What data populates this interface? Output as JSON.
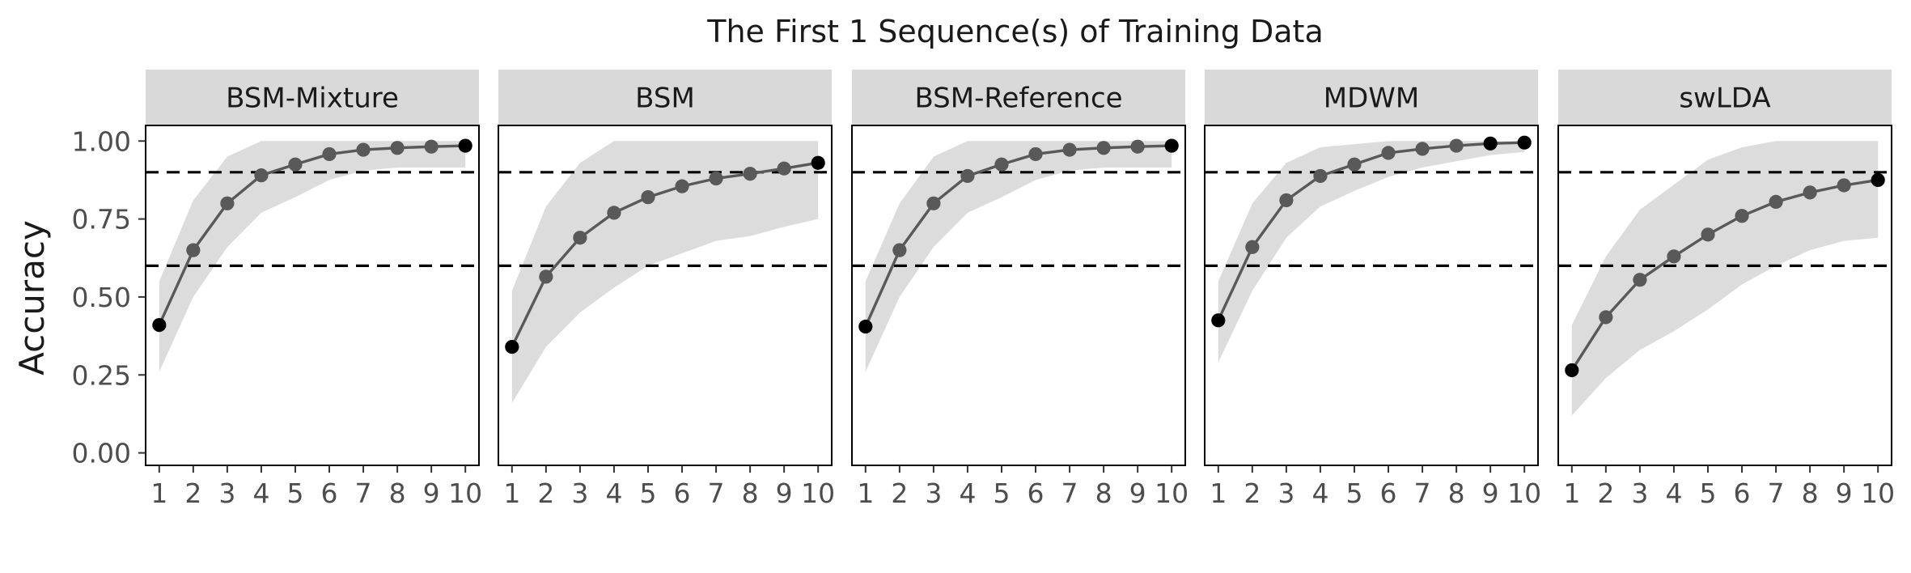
{
  "chart_data": {
    "type": "line",
    "title": "The First 1 Sequence(s) of Training Data",
    "ylabel": "Accuracy",
    "xlabel": "",
    "x": [
      1,
      2,
      3,
      4,
      5,
      6,
      7,
      8,
      9,
      10
    ],
    "x_tick_labels": [
      "1",
      "2",
      "3",
      "4",
      "5",
      "6",
      "7",
      "8",
      "9",
      "10"
    ],
    "y_ticks": [
      0.0,
      0.25,
      0.5,
      0.75,
      1.0
    ],
    "y_tick_labels": [
      "0.00",
      "0.25",
      "0.50",
      "0.75",
      "1.00"
    ],
    "ylim": [
      -0.04,
      1.05
    ],
    "xlim": [
      0.6,
      10.4
    ],
    "reference_lines": [
      0.9,
      0.6
    ],
    "colors": {
      "line": "#595959",
      "point": "#595959",
      "point_dark": "#000000",
      "band": "#dcdcdc",
      "strip": "#d9d9d9",
      "refline": "#000000"
    },
    "panels": [
      {
        "name": "BSM-Mixture",
        "values": [
          0.41,
          0.65,
          0.8,
          0.89,
          0.925,
          0.958,
          0.972,
          0.978,
          0.982,
          0.985
        ],
        "lower": [
          0.26,
          0.5,
          0.66,
          0.77,
          0.82,
          0.875,
          0.905,
          0.915,
          0.915,
          0.915
        ],
        "upper": [
          0.55,
          0.81,
          0.95,
          1.0,
          1.0,
          1.0,
          1.0,
          1.0,
          1.0,
          1.0
        ],
        "dark_points": [
          0,
          9
        ]
      },
      {
        "name": "BSM",
        "values": [
          0.34,
          0.565,
          0.69,
          0.77,
          0.82,
          0.855,
          0.88,
          0.895,
          0.912,
          0.93
        ],
        "lower": [
          0.16,
          0.34,
          0.45,
          0.53,
          0.6,
          0.64,
          0.68,
          0.695,
          0.725,
          0.75
        ],
        "upper": [
          0.52,
          0.79,
          0.93,
          1.0,
          1.0,
          1.0,
          1.0,
          1.0,
          1.0,
          1.0
        ],
        "dark_points": [
          0,
          9
        ]
      },
      {
        "name": "BSM-Reference",
        "values": [
          0.405,
          0.65,
          0.8,
          0.888,
          0.925,
          0.958,
          0.972,
          0.978,
          0.982,
          0.985
        ],
        "lower": [
          0.26,
          0.5,
          0.66,
          0.77,
          0.82,
          0.875,
          0.905,
          0.915,
          0.915,
          0.915
        ],
        "upper": [
          0.55,
          0.8,
          0.95,
          1.0,
          1.0,
          1.0,
          1.0,
          1.0,
          1.0,
          1.0
        ],
        "dark_points": [
          0,
          9
        ]
      },
      {
        "name": "MDWM",
        "values": [
          0.425,
          0.66,
          0.81,
          0.888,
          0.925,
          0.962,
          0.975,
          0.985,
          0.992,
          0.995
        ],
        "lower": [
          0.29,
          0.52,
          0.69,
          0.79,
          0.84,
          0.885,
          0.915,
          0.935,
          0.955,
          0.965
        ],
        "upper": [
          0.55,
          0.8,
          0.93,
          0.98,
          0.99,
          1.0,
          1.0,
          1.0,
          1.0,
          1.0
        ],
        "dark_points": [
          0,
          8,
          9
        ]
      },
      {
        "name": "swLDA",
        "values": [
          0.265,
          0.435,
          0.555,
          0.63,
          0.7,
          0.76,
          0.805,
          0.835,
          0.858,
          0.875
        ],
        "lower": [
          0.12,
          0.24,
          0.33,
          0.39,
          0.46,
          0.54,
          0.6,
          0.65,
          0.68,
          0.69
        ],
        "upper": [
          0.41,
          0.63,
          0.78,
          0.86,
          0.94,
          0.98,
          1.0,
          1.0,
          1.0,
          1.0
        ],
        "dark_points": [
          0,
          9
        ]
      }
    ]
  }
}
